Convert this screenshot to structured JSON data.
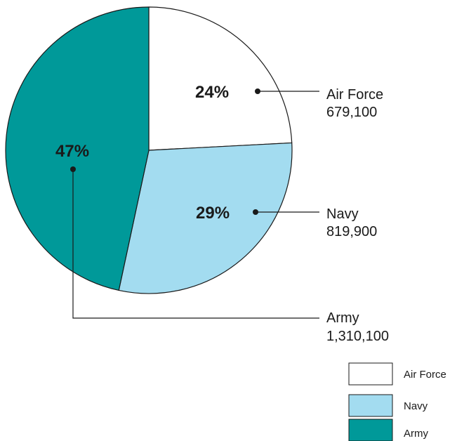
{
  "chart_data": {
    "type": "pie",
    "slices": [
      {
        "label": "Air Force",
        "value": 679100,
        "value_text": "679,100",
        "percent_text": "24%",
        "color": "#ffffff"
      },
      {
        "label": "Navy",
        "value": 819900,
        "value_text": "819,900",
        "percent_text": "29%",
        "color": "#a3dcf0"
      },
      {
        "label": "Army",
        "value": 1310100,
        "value_text": "1,310,100",
        "percent_text": "47%",
        "color": "#009999"
      }
    ],
    "legend": {
      "position": "bottom-right",
      "items": [
        "Air Force",
        "Navy",
        "Army"
      ]
    }
  },
  "colors": {
    "outline": "#1a1a1a",
    "air_force": "#ffffff",
    "navy": "#a3dcf0",
    "army": "#009999"
  }
}
